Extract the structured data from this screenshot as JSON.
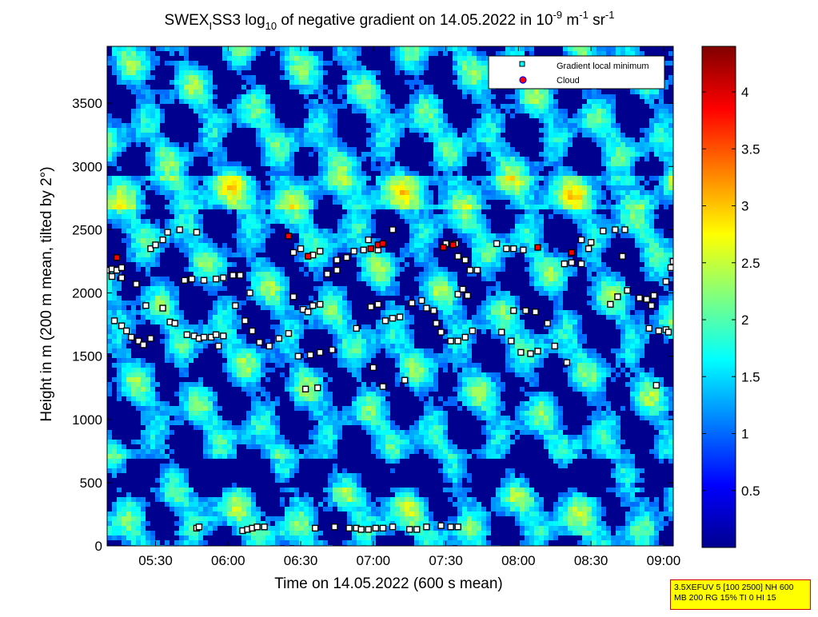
{
  "chart_data": {
    "type": "heatmap",
    "title": {
      "main": "SWEX",
      "sub": "I",
      "part2": "SS3 log",
      "sub2": "10",
      "part3": " of negative gradient on 14.05.2022 in 10",
      "sup1": "-9",
      "part4": " m",
      "sup2": "-1",
      "part5": " sr",
      "sup3": "-1"
    },
    "xlabel": "Time on 14.05.2022 (600 s mean)",
    "ylabel": "Height in m (200 m mean, tilted by 2°)",
    "xlim": [
      "05:10",
      "09:04"
    ],
    "ylim": [
      0,
      3950
    ],
    "xticks": [
      "05:30",
      "06:00",
      "06:30",
      "07:00",
      "07:30",
      "08:00",
      "08:30",
      "09:00"
    ],
    "yticks": [
      0,
      500,
      1000,
      1500,
      2000,
      2500,
      3000,
      3500
    ],
    "colorbar": {
      "min": 0,
      "max": 4.4,
      "ticks": [
        0.5,
        1,
        1.5,
        2,
        2.5,
        3,
        3.5,
        4
      ],
      "colormap": "jet"
    },
    "legend": {
      "placement": "top-right",
      "entries": [
        {
          "label": "Gradient local minimum",
          "color": "#00ffff"
        },
        {
          "label": "Cloud",
          "color": "#ff0000"
        }
      ]
    },
    "gradient_minima": [
      [
        "05:10",
        2180
      ],
      [
        "05:12",
        2190
      ],
      [
        "05:14",
        2180
      ],
      [
        "05:16",
        2200
      ],
      [
        "05:12",
        2130
      ],
      [
        "05:16",
        2120
      ],
      [
        "05:22",
        2070
      ],
      [
        "05:26",
        1900
      ],
      [
        "05:33",
        1880
      ],
      [
        "05:28",
        2350
      ],
      [
        "05:30",
        2380
      ],
      [
        "05:33",
        2420
      ],
      [
        "05:35",
        2480
      ],
      [
        "05:40",
        2500
      ],
      [
        "05:47",
        2480
      ],
      [
        "05:13",
        1780
      ],
      [
        "05:16",
        1740
      ],
      [
        "05:18",
        1700
      ],
      [
        "05:20",
        1650
      ],
      [
        "05:23",
        1620
      ],
      [
        "05:25",
        1590
      ],
      [
        "05:28",
        1640
      ],
      [
        "05:36",
        1770
      ],
      [
        "05:38",
        1760
      ],
      [
        "05:43",
        1670
      ],
      [
        "05:46",
        1660
      ],
      [
        "05:48",
        1640
      ],
      [
        "05:50",
        1650
      ],
      [
        "05:53",
        1650
      ],
      [
        "05:55",
        1670
      ],
      [
        "05:58",
        1660
      ],
      [
        "05:56",
        1580
      ],
      [
        "05:42",
        2100
      ],
      [
        "05:45",
        2110
      ],
      [
        "05:50",
        2100
      ],
      [
        "05:55",
        2110
      ],
      [
        "05:58",
        2120
      ],
      [
        "06:02",
        2140
      ],
      [
        "06:05",
        2140
      ],
      [
        "06:09",
        2000
      ],
      [
        "06:03",
        1900
      ],
      [
        "06:07",
        1780
      ],
      [
        "06:10",
        1700
      ],
      [
        "06:13",
        1610
      ],
      [
        "06:17",
        1580
      ],
      [
        "06:21",
        1640
      ],
      [
        "06:25",
        1680
      ],
      [
        "06:27",
        1970
      ],
      [
        "06:27",
        2320
      ],
      [
        "06:30",
        2350
      ],
      [
        "06:35",
        2300
      ],
      [
        "06:38",
        2330
      ],
      [
        "06:35",
        1900
      ],
      [
        "06:38",
        1910
      ],
      [
        "06:31",
        1870
      ],
      [
        "06:33",
        1850
      ],
      [
        "06:29",
        1500
      ],
      [
        "06:34",
        1510
      ],
      [
        "06:38",
        1530
      ],
      [
        "06:43",
        1550
      ],
      [
        "06:37",
        1250
      ],
      [
        "06:32",
        1240
      ],
      [
        "06:41",
        2150
      ],
      [
        "06:45",
        2180
      ],
      [
        "06:45",
        2260
      ],
      [
        "06:49",
        2280
      ],
      [
        "06:52",
        2330
      ],
      [
        "06:56",
        2340
      ],
      [
        "06:58",
        2420
      ],
      [
        "06:59",
        1890
      ],
      [
        "07:02",
        1910
      ],
      [
        "07:05",
        1780
      ],
      [
        "07:08",
        1800
      ],
      [
        "07:11",
        1810
      ],
      [
        "06:53",
        1720
      ],
      [
        "07:00",
        1410
      ],
      [
        "07:02",
        2340
      ],
      [
        "07:08",
        2500
      ],
      [
        "07:04",
        1260
      ],
      [
        "07:13",
        1310
      ],
      [
        "07:16",
        1920
      ],
      [
        "07:20",
        1940
      ],
      [
        "07:22",
        1880
      ],
      [
        "07:25",
        1860
      ],
      [
        "07:26",
        1760
      ],
      [
        "07:28",
        1690
      ],
      [
        "07:32",
        1620
      ],
      [
        "07:35",
        1620
      ],
      [
        "07:38",
        1650
      ],
      [
        "07:41",
        1700
      ],
      [
        "07:35",
        1990
      ],
      [
        "07:37",
        2030
      ],
      [
        "07:40",
        2180
      ],
      [
        "07:43",
        2180
      ],
      [
        "07:30",
        2390
      ],
      [
        "07:34",
        2390
      ],
      [
        "07:35",
        2290
      ],
      [
        "07:38",
        2260
      ],
      [
        "07:39",
        1980
      ],
      [
        "07:51",
        2390
      ],
      [
        "07:55",
        2350
      ],
      [
        "07:58",
        2350
      ],
      [
        "08:02",
        2340
      ],
      [
        "07:53",
        1690
      ],
      [
        "07:57",
        1620
      ],
      [
        "08:01",
        1530
      ],
      [
        "08:05",
        1520
      ],
      [
        "08:08",
        1540
      ],
      [
        "07:58",
        1860
      ],
      [
        "08:03",
        1860
      ],
      [
        "08:07",
        1850
      ],
      [
        "08:12",
        1760
      ],
      [
        "08:15",
        1580
      ],
      [
        "08:20",
        1450
      ],
      [
        "08:19",
        2230
      ],
      [
        "08:22",
        2240
      ],
      [
        "08:26",
        2230
      ],
      [
        "08:26",
        2420
      ],
      [
        "08:30",
        2400
      ],
      [
        "08:29",
        2350
      ],
      [
        "08:35",
        2490
      ],
      [
        "08:40",
        2500
      ],
      [
        "08:44",
        2500
      ],
      [
        "08:38",
        1910
      ],
      [
        "08:41",
        1970
      ],
      [
        "08:45",
        2020
      ],
      [
        "08:43",
        2290
      ],
      [
        "08:50",
        1960
      ],
      [
        "08:53",
        1950
      ],
      [
        "08:55",
        1900
      ],
      [
        "08:56",
        1980
      ],
      [
        "08:54",
        1720
      ],
      [
        "08:58",
        1700
      ],
      [
        "09:01",
        1710
      ],
      [
        "09:02",
        1690
      ],
      [
        "08:57",
        1270
      ],
      [
        "09:01",
        2090
      ],
      [
        "09:03",
        2200
      ],
      [
        "09:04",
        2250
      ],
      [
        "05:47",
        140
      ],
      [
        "05:48",
        150
      ],
      [
        "06:06",
        120
      ],
      [
        "06:08",
        130
      ],
      [
        "06:10",
        140
      ],
      [
        "06:12",
        150
      ],
      [
        "06:15",
        150
      ],
      [
        "06:36",
        140
      ],
      [
        "06:44",
        150
      ],
      [
        "06:50",
        140
      ],
      [
        "06:53",
        140
      ],
      [
        "06:55",
        130
      ],
      [
        "06:58",
        130
      ],
      [
        "07:01",
        140
      ],
      [
        "07:04",
        140
      ],
      [
        "07:08",
        150
      ],
      [
        "07:15",
        130
      ],
      [
        "07:18",
        130
      ],
      [
        "07:22",
        150
      ],
      [
        "07:28",
        160
      ],
      [
        "07:32",
        150
      ],
      [
        "07:35",
        150
      ]
    ],
    "clouds": [
      [
        "05:14",
        2280
      ],
      [
        "06:25",
        2450
      ],
      [
        "06:33",
        2290
      ],
      [
        "06:59",
        2350
      ],
      [
        "07:02",
        2380
      ],
      [
        "07:04",
        2390
      ],
      [
        "07:29",
        2360
      ],
      [
        "07:33",
        2380
      ],
      [
        "08:08",
        2360
      ],
      [
        "08:22",
        2320
      ]
    ],
    "info_lines": [
      "3.5XEFUV 5 [100 2500] NH 600",
      "MB 200 RG 15% TI 0 HI 15"
    ]
  }
}
